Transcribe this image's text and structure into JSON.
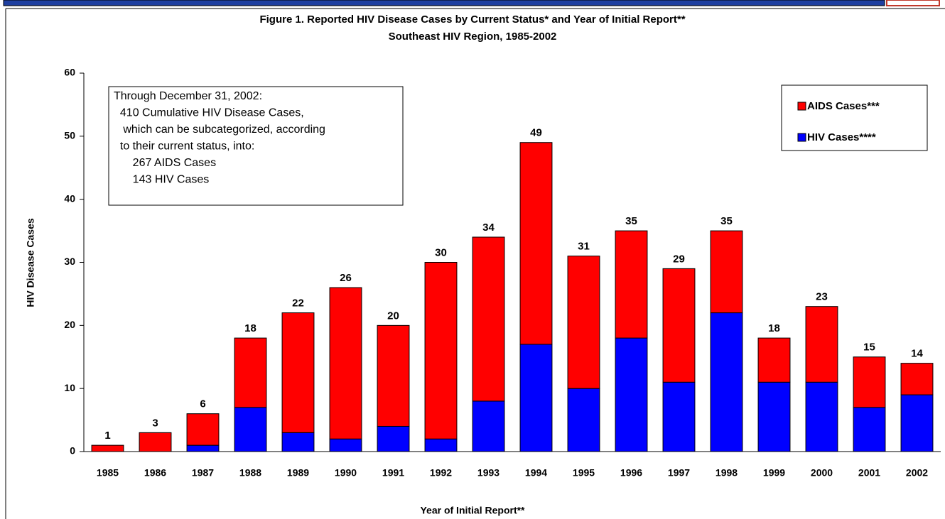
{
  "chart_data": {
    "type": "stacked-bar",
    "title": "Figure 1.  Reported HIV Disease Cases by Current Status* and Year of Initial Report**",
    "subtitle": "Southeast HIV Region, 1985-2002",
    "ylabel": "HIV Disease Cases",
    "xlabel": "Year of Initial Report**",
    "categories": [
      "1985",
      "1986",
      "1987",
      "1988",
      "1989",
      "1990",
      "1991",
      "1992",
      "1993",
      "1994",
      "1995",
      "1996",
      "1997",
      "1998",
      "1999",
      "2000",
      "2001",
      "2002"
    ],
    "series": [
      {
        "name": "HIV Cases****",
        "color": "#0000ff",
        "values": [
          0,
          0,
          1,
          7,
          3,
          2,
          4,
          2,
          8,
          17,
          10,
          18,
          11,
          22,
          11,
          11,
          7,
          9
        ]
      },
      {
        "name": "AIDS Cases***",
        "color": "#ff0000",
        "values": [
          1,
          3,
          5,
          11,
          19,
          24,
          16,
          28,
          26,
          32,
          21,
          17,
          18,
          13,
          7,
          12,
          8,
          5
        ]
      }
    ],
    "totals": [
      1,
      3,
      6,
      18,
      22,
      26,
      20,
      30,
      34,
      49,
      31,
      35,
      29,
      35,
      18,
      23,
      15,
      14
    ],
    "ylim": [
      0,
      60
    ],
    "yticks": [
      0,
      10,
      20,
      30,
      40,
      50,
      60
    ],
    "annotation": [
      "Through December 31, 2002:",
      "  410 Cumulative HIV Disease Cases,",
      "   which can be subcategorized, according",
      "  to their current status, into:",
      "      267 AIDS Cases",
      "      143 HIV Cases"
    ]
  }
}
